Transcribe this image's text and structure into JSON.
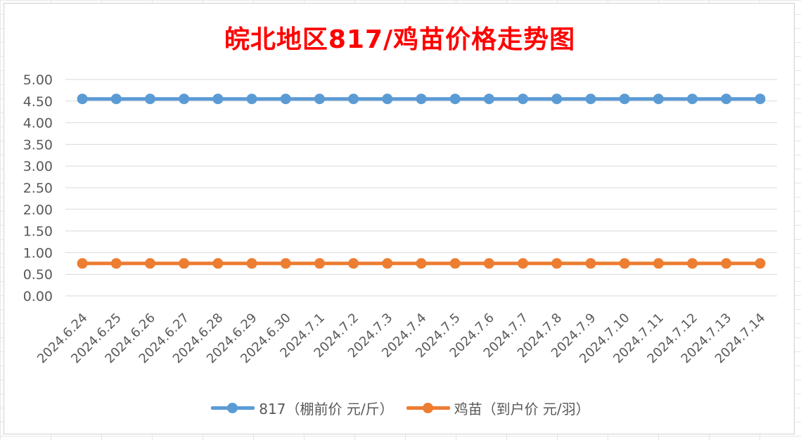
{
  "colors": {
    "series1": "#5b9bd5",
    "series2": "#ed7d31",
    "title": "#ff0000",
    "grid": "#d9d9d9",
    "text": "#595959"
  },
  "chart_data": {
    "type": "line",
    "title": "皖北地区817/鸡苗价格走势图",
    "xlabel": "",
    "ylabel": "",
    "ylim": [
      0,
      5
    ],
    "ytick_step": 0.5,
    "grid": true,
    "legend_position": "bottom",
    "categories": [
      "2024.6.24",
      "2024.6.25",
      "2024.6.26",
      "2024.6.27",
      "2024.6.28",
      "2024.6.29",
      "2024.6.30",
      "2024.7.1",
      "2024.7.2",
      "2024.7.3",
      "2024.7.4",
      "2024.7.5",
      "2024.7.6",
      "2024.7.7",
      "2024.7.8",
      "2024.7.9",
      "2024.7.10",
      "2024.7.11",
      "2024.7.12",
      "2024.7.13",
      "2024.7.14"
    ],
    "series": [
      {
        "name": "817（棚前价 元/斤）",
        "color": "#5b9bd5",
        "values": [
          4.55,
          4.55,
          4.55,
          4.55,
          4.55,
          4.55,
          4.55,
          4.55,
          4.55,
          4.55,
          4.55,
          4.55,
          4.55,
          4.55,
          4.55,
          4.55,
          4.55,
          4.55,
          4.55,
          4.55,
          4.55
        ]
      },
      {
        "name": "鸡苗（到户价 元/羽）",
        "color": "#ed7d31",
        "values": [
          0.75,
          0.75,
          0.75,
          0.75,
          0.75,
          0.75,
          0.75,
          0.75,
          0.75,
          0.75,
          0.75,
          0.75,
          0.75,
          0.75,
          0.75,
          0.75,
          0.75,
          0.75,
          0.75,
          0.75,
          0.75
        ]
      }
    ]
  }
}
